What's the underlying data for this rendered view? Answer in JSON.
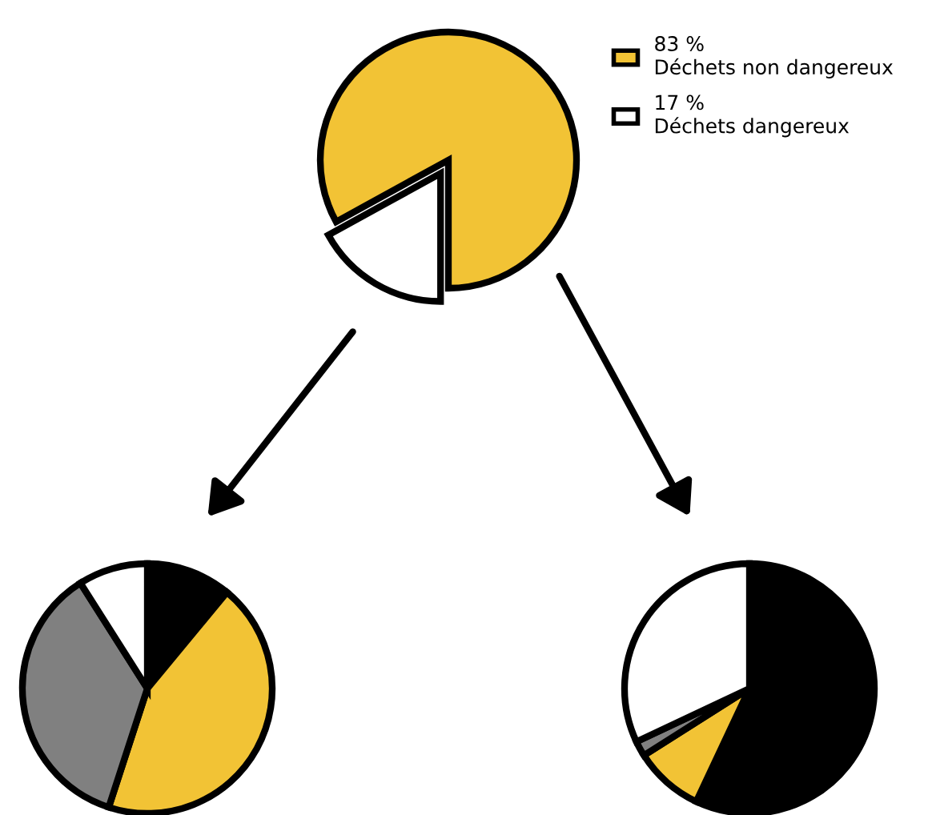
{
  "chart_data": [
    {
      "type": "pie",
      "categories": [
        "Déchets dangereux",
        "Déchets non dangereux"
      ],
      "values": [
        17,
        83
      ],
      "colors": [
        "#ffffff",
        "#f2c335"
      ],
      "value_labels": [
        "17 %",
        "83 %"
      ],
      "legend": "right"
    },
    {
      "type": "pie",
      "categories": [
        null,
        null,
        null,
        null
      ],
      "values": [
        11,
        44,
        36,
        9
      ],
      "colors": [
        "#000000",
        "#f2c335",
        "#808080",
        "#ffffff"
      ]
    },
    {
      "type": "pie",
      "categories": [
        null,
        null,
        null,
        null
      ],
      "values": [
        57,
        9,
        2,
        32
      ],
      "colors": [
        "#000000",
        "#f2c335",
        "#808080",
        "#ffffff"
      ]
    }
  ]
}
